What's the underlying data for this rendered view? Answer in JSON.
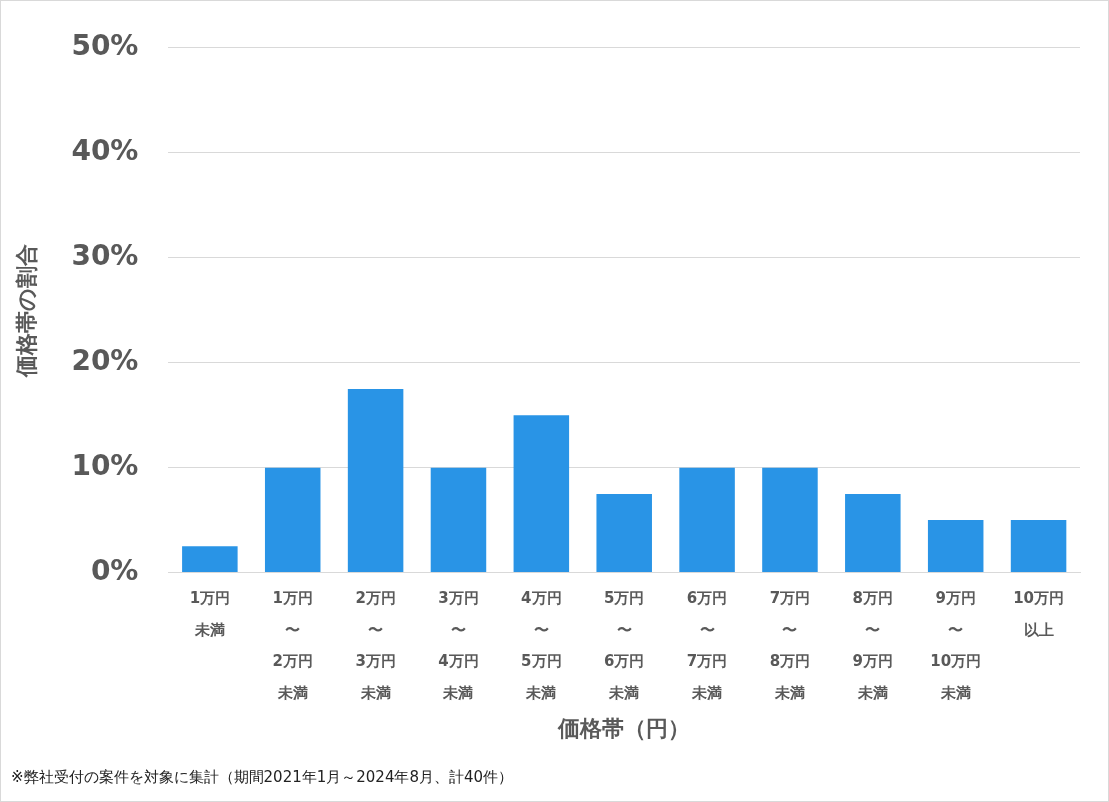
{
  "chart_data": {
    "type": "bar",
    "x_label": "価格帯（円）",
    "y_label": "価格帯の割合",
    "footnote": "※弊社受付の案件を対象に集計（期間2021年1月～2024年8月、計40件）",
    "categories": [
      [
        "1万円",
        "未満"
      ],
      [
        "1万円",
        "〜",
        "2万円",
        "未満"
      ],
      [
        "2万円",
        "〜",
        "3万円",
        "未満"
      ],
      [
        "3万円",
        "〜",
        "4万円",
        "未満"
      ],
      [
        "4万円",
        "〜",
        "5万円",
        "未満"
      ],
      [
        "5万円",
        "〜",
        "6万円",
        "未満"
      ],
      [
        "6万円",
        "〜",
        "7万円",
        "未満"
      ],
      [
        "7万円",
        "〜",
        "8万円",
        "未満"
      ],
      [
        "8万円",
        "〜",
        "9万円",
        "未満"
      ],
      [
        "9万円",
        "〜",
        "10万円",
        "未満"
      ],
      [
        "10万円",
        "以上"
      ]
    ],
    "values": [
      2.5,
      10,
      17.5,
      10,
      15,
      7.5,
      10,
      10,
      7.5,
      5,
      5
    ],
    "color": "#2994e6",
    "ylim": [
      0,
      50
    ],
    "yticks": [
      {
        "value": 0,
        "label": "0%"
      },
      {
        "value": 10,
        "label": "10%"
      },
      {
        "value": 20,
        "label": "20%"
      },
      {
        "value": 30,
        "label": "30%"
      },
      {
        "value": 40,
        "label": "40%"
      },
      {
        "value": 50,
        "label": "50%"
      }
    ],
    "grid": true
  }
}
